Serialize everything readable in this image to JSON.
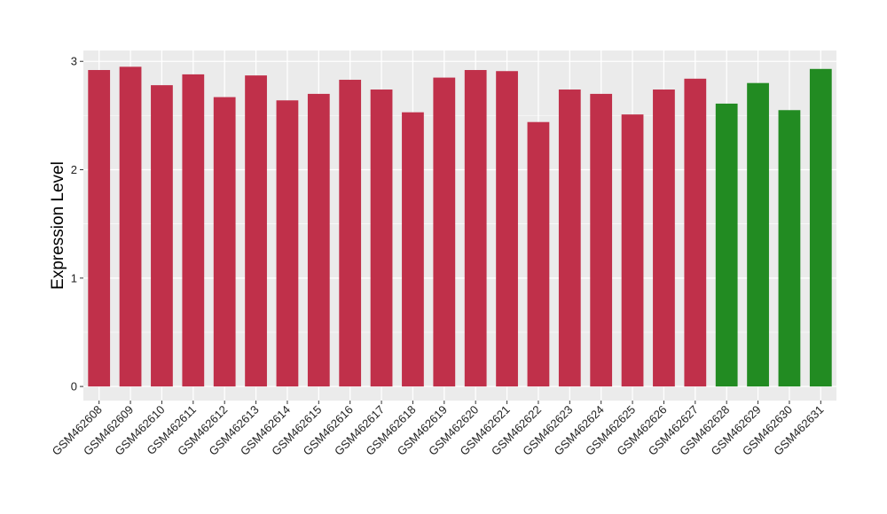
{
  "chart_data": {
    "type": "bar",
    "title": "",
    "xlabel": "",
    "ylabel": "Expression Level",
    "ylim": [
      -0.13,
      3.1
    ],
    "yticks": [
      0,
      1,
      2,
      3
    ],
    "grid": true,
    "legend": "none",
    "categories": [
      "GSM462608",
      "GSM462609",
      "GSM462610",
      "GSM462611",
      "GSM462612",
      "GSM462613",
      "GSM462614",
      "GSM462615",
      "GSM462616",
      "GSM462617",
      "GSM462618",
      "GSM462619",
      "GSM462620",
      "GSM462621",
      "GSM462622",
      "GSM462623",
      "GSM462624",
      "GSM462625",
      "GSM462626",
      "GSM462627",
      "GSM462628",
      "GSM462629",
      "GSM462630",
      "GSM462631"
    ],
    "values": [
      2.92,
      2.95,
      2.78,
      2.88,
      2.67,
      2.87,
      2.64,
      2.7,
      2.83,
      2.74,
      2.53,
      2.85,
      2.92,
      2.91,
      2.44,
      2.74,
      2.7,
      2.51,
      2.74,
      2.84,
      2.61,
      2.8,
      2.55,
      2.93
    ],
    "bar_colors": [
      "#c0304a",
      "#c0304a",
      "#c0304a",
      "#c0304a",
      "#c0304a",
      "#c0304a",
      "#c0304a",
      "#c0304a",
      "#c0304a",
      "#c0304a",
      "#c0304a",
      "#c0304a",
      "#c0304a",
      "#c0304a",
      "#c0304a",
      "#c0304a",
      "#c0304a",
      "#c0304a",
      "#c0304a",
      "#c0304a",
      "#228b22",
      "#228b22",
      "#228b22",
      "#228b22"
    ],
    "panel_color": "#ebebeb",
    "grid_color": "#ffffff"
  }
}
